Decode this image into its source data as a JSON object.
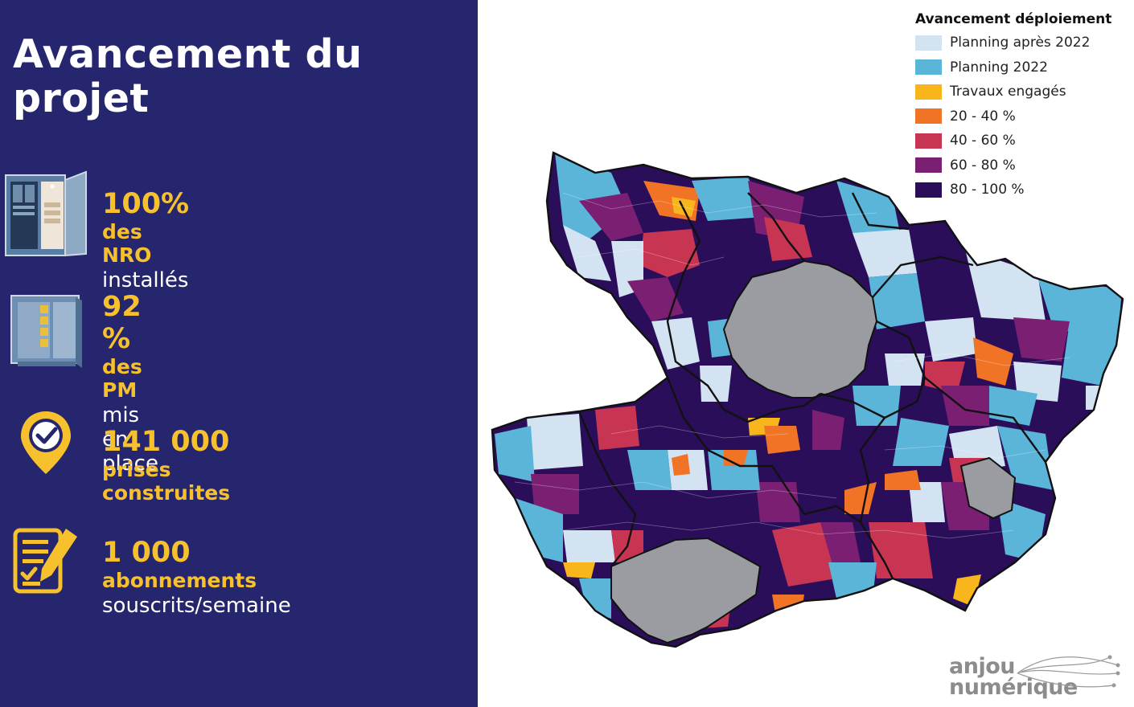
{
  "title": "Avancement du projet",
  "title_line1": "Avancement du",
  "title_line2": "projet",
  "stats": [
    {
      "icon": "nro-cabinet-icon",
      "value": "100%",
      "label": "des NRO",
      "sub": "installés"
    },
    {
      "icon": "pm-cabinet-icon",
      "value": "92 %",
      "label": "des PM",
      "sub": "mis en place"
    },
    {
      "icon": "location-check-icon",
      "value": "141 000",
      "label": "prises construites",
      "sub": ""
    },
    {
      "icon": "checklist-icon",
      "value": "1 000",
      "label": "abonnements",
      "sub": "souscrits/semaine"
    }
  ],
  "legend": {
    "title": "Avancement déploiement",
    "items": [
      {
        "label": "Planning après 2022",
        "color": "#d3e3f1"
      },
      {
        "label": "Planning 2022",
        "color": "#5bb5d9"
      },
      {
        "label": "Travaux engagés",
        "color": "#f9b61c"
      },
      {
        "label": "20 - 40 %",
        "color": "#f07326"
      },
      {
        "label": "40 - 60 %",
        "color": "#c83552"
      },
      {
        "label": "60 - 80 %",
        "color": "#7a1f72"
      },
      {
        "label": "80 - 100 %",
        "color": "#2b0e5a"
      }
    ]
  },
  "excluded_zone_color": "#9b9ca1",
  "logo": {
    "line1": "anjou",
    "line2": "numérique"
  },
  "colors": {
    "panel_bg": "#26266e",
    "accent": "#f7c12e",
    "text": "#ffffff"
  }
}
